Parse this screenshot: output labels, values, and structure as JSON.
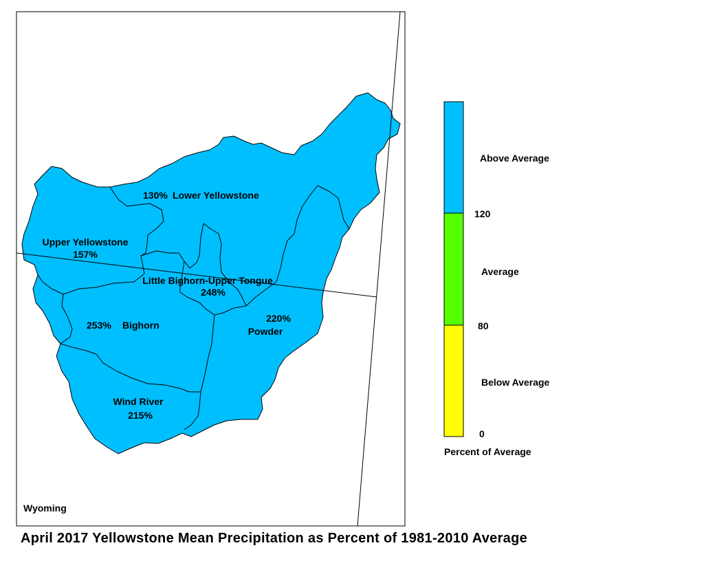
{
  "title": "April 2017 Yellowstone Mean Precipitation as Percent of 1981-2010 Average",
  "state_label": "Wyoming",
  "colors": {
    "above_average": "#00BFFF",
    "average": "#55FF00",
    "below_average": "#FFFF00",
    "basin_boundary": "#000000",
    "background": "#FFFFFF"
  },
  "basins": [
    {
      "name": "Lower Yellowstone",
      "percent": "130%",
      "category": "above_average"
    },
    {
      "name": "Upper Yellowstone",
      "percent": "157%",
      "category": "above_average"
    },
    {
      "name": "Little Bighorn-Upper Tongue",
      "percent": "248%",
      "category": "above_average"
    },
    {
      "name": "Bighorn",
      "percent": "253%",
      "category": "above_average"
    },
    {
      "name": "Powder",
      "percent": "220%",
      "category": "above_average"
    },
    {
      "name": "Wind River",
      "percent": "215%",
      "category": "above_average"
    }
  ],
  "legend": {
    "title": "Percent of Average",
    "classes": [
      {
        "label": "Above Average",
        "color": "#00BFFF"
      },
      {
        "label": "Average",
        "color": "#55FF00"
      },
      {
        "label": "Below Average",
        "color": "#FFFF00"
      }
    ],
    "breaks": [
      "120",
      "80",
      "0"
    ]
  }
}
